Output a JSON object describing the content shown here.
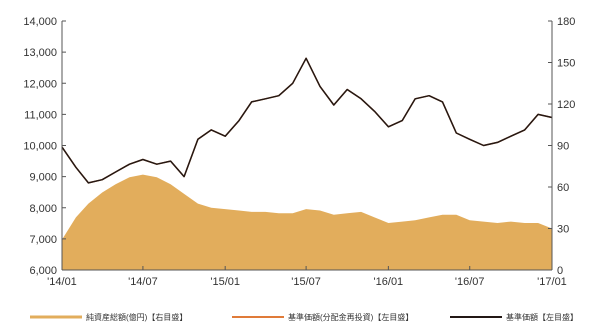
{
  "chart_data": {
    "type": "area+line",
    "title": "",
    "xlabel": "",
    "ylabel_left": "",
    "ylabel_right": "",
    "x_ticks": [
      "'14/01",
      "'14/07",
      "'15/01",
      "'15/07",
      "'16/01",
      "'16/07",
      "'17/01"
    ],
    "left_axis": {
      "ylim": [
        6000,
        14000
      ],
      "ticks": [
        "6,000",
        "7,000",
        "8,000",
        "9,000",
        "10,000",
        "11,000",
        "12,000",
        "13,000",
        "14,000"
      ],
      "tick_values": [
        6000,
        7000,
        8000,
        9000,
        10000,
        11000,
        12000,
        13000,
        14000
      ]
    },
    "right_axis": {
      "ylim": [
        0,
        180
      ],
      "ticks": [
        "0",
        "30",
        "60",
        "90",
        "120",
        "150",
        "180"
      ],
      "tick_values": [
        0,
        30,
        60,
        90,
        120,
        150,
        180
      ]
    },
    "grid": false,
    "legend_position": "bottom",
    "colors": {
      "area": "#e2ad5c",
      "line_distribution": "#e07b39",
      "line_nav": "#231815",
      "axis": "#555555"
    },
    "series": [
      {
        "name": "純資産総額(億円)【右目盛】",
        "kind": "area",
        "axis": "right",
        "x": [
          "2014-01",
          "2014-02",
          "2014-03",
          "2014-04",
          "2014-05",
          "2014-06",
          "2014-07",
          "2014-08",
          "2014-09",
          "2014-10",
          "2014-11",
          "2014-12",
          "2015-01",
          "2015-02",
          "2015-03",
          "2015-04",
          "2015-05",
          "2015-06",
          "2015-07",
          "2015-08",
          "2015-09",
          "2015-10",
          "2015-11",
          "2015-12",
          "2016-01",
          "2016-02",
          "2016-03",
          "2016-04",
          "2016-05",
          "2016-06",
          "2016-07",
          "2016-08",
          "2016-09",
          "2016-10",
          "2016-11",
          "2016-12",
          "2017-01"
        ],
        "values": [
          22,
          38,
          48,
          56,
          62,
          67,
          69,
          67,
          62,
          55,
          48,
          45,
          44,
          43,
          42,
          42,
          41,
          41,
          44,
          43,
          40,
          41,
          42,
          38,
          34,
          35,
          36,
          38,
          40,
          40,
          36,
          35,
          34,
          35,
          34,
          34,
          30
        ]
      },
      {
        "name": "基準価額(分配金再投資)【左目盛】",
        "kind": "line",
        "axis": "left",
        "x": [
          "2014-01",
          "2014-02",
          "2014-03",
          "2014-04",
          "2014-05",
          "2014-06",
          "2014-07",
          "2014-08",
          "2014-09",
          "2014-10",
          "2014-11",
          "2014-12",
          "2015-01",
          "2015-02",
          "2015-03",
          "2015-04",
          "2015-05",
          "2015-06",
          "2015-07",
          "2015-08",
          "2015-09",
          "2015-10",
          "2015-11",
          "2015-12",
          "2016-01",
          "2016-02",
          "2016-03",
          "2016-04",
          "2016-05",
          "2016-06",
          "2016-07",
          "2016-08",
          "2016-09",
          "2016-10",
          "2016-11",
          "2016-12",
          "2017-01"
        ],
        "values": [
          9950,
          9300,
          8800,
          8900,
          9150,
          9400,
          9550,
          9400,
          9500,
          9000,
          10200,
          10500,
          10300,
          10800,
          11400,
          11500,
          11600,
          12000,
          12800,
          11900,
          11300,
          11800,
          11500,
          11100,
          10600,
          10800,
          11500,
          11600,
          11400,
          10400,
          10200,
          10000,
          10100,
          10300,
          10500,
          11000,
          10900
        ]
      },
      {
        "name": "基準価額【左目盛】",
        "kind": "line",
        "axis": "left",
        "x": [
          "2014-01",
          "2014-02",
          "2014-03",
          "2014-04",
          "2014-05",
          "2014-06",
          "2014-07",
          "2014-08",
          "2014-09",
          "2014-10",
          "2014-11",
          "2014-12",
          "2015-01",
          "2015-02",
          "2015-03",
          "2015-04",
          "2015-05",
          "2015-06",
          "2015-07",
          "2015-08",
          "2015-09",
          "2015-10",
          "2015-11",
          "2015-12",
          "2016-01",
          "2016-02",
          "2016-03",
          "2016-04",
          "2016-05",
          "2016-06",
          "2016-07",
          "2016-08",
          "2016-09",
          "2016-10",
          "2016-11",
          "2016-12",
          "2017-01"
        ],
        "values": [
          9950,
          9300,
          8800,
          8900,
          9150,
          9400,
          9550,
          9400,
          9500,
          9000,
          10200,
          10500,
          10300,
          10800,
          11400,
          11500,
          11600,
          12000,
          12800,
          11900,
          11300,
          11800,
          11500,
          11100,
          10600,
          10800,
          11500,
          11600,
          11400,
          10400,
          10200,
          10000,
          10100,
          10300,
          10500,
          11000,
          10900
        ]
      }
    ]
  }
}
